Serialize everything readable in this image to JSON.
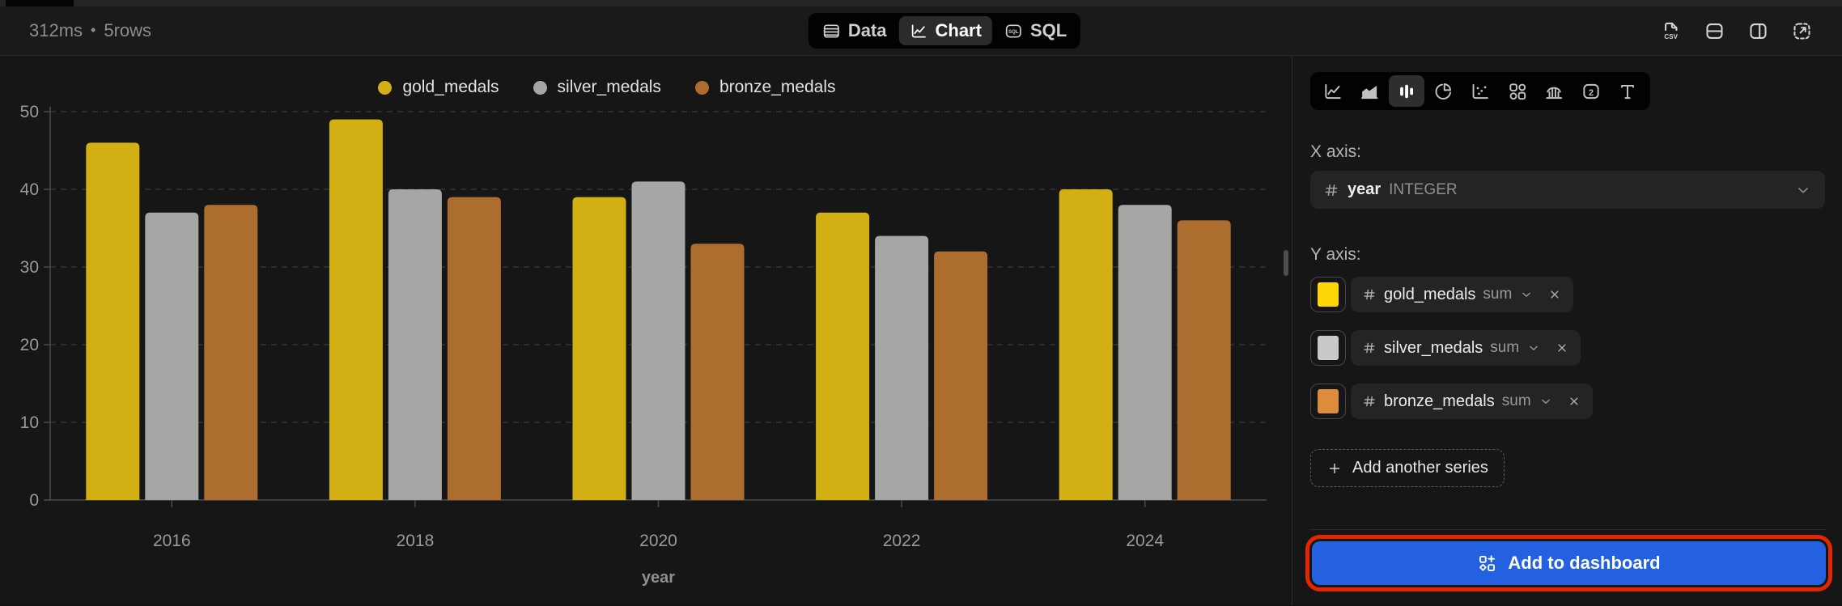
{
  "colors": {
    "gold": "#d2b014",
    "silver": "#a6a6a4",
    "bronze": "#ad6d2f",
    "swatch_gold": "#ffd60a",
    "swatch_silver": "#c9c9c9",
    "swatch_bronze": "#dd8c3c",
    "primary_button": "#2361e0",
    "annotation_highlight": "#e32500"
  },
  "status_bar": {
    "duration": "312ms",
    "bullet": "•",
    "row_count": "5rows"
  },
  "view_tabs": {
    "items": [
      {
        "label": "Data",
        "icon": "table-icon",
        "active": false
      },
      {
        "label": "Chart",
        "icon": "line-chart-icon",
        "active": true
      },
      {
        "label": "SQL",
        "icon": "sql-icon",
        "active": false
      }
    ]
  },
  "toolbar": {
    "icons": [
      {
        "name": "csv-export-icon"
      },
      {
        "name": "split-horizontal-icon"
      },
      {
        "name": "split-vertical-icon"
      },
      {
        "name": "expand-icon"
      }
    ]
  },
  "chart_data": {
    "type": "bar",
    "categories": [
      "2016",
      "2018",
      "2020",
      "2022",
      "2024"
    ],
    "series": [
      {
        "name": "gold_medals",
        "color": "#d2b014",
        "values": [
          46,
          49,
          39,
          37,
          40
        ]
      },
      {
        "name": "silver_medals",
        "color": "#a6a6a4",
        "values": [
          37,
          40,
          41,
          34,
          38
        ]
      },
      {
        "name": "bronze_medals",
        "color": "#ad6d2f",
        "values": [
          38,
          39,
          33,
          32,
          36
        ]
      }
    ],
    "title": "",
    "xlabel": "year",
    "ylabel": "",
    "ylim": [
      0,
      50
    ],
    "yticks": [
      0,
      10,
      20,
      30,
      40,
      50
    ],
    "grid": "horizontal-dashed",
    "legend_position": "top"
  },
  "panel": {
    "chart_types": [
      {
        "icon": "line-chart-icon",
        "active": false
      },
      {
        "icon": "area-chart-icon",
        "active": false
      },
      {
        "icon": "bar-chart-icon",
        "active": true
      },
      {
        "icon": "pie-chart-icon",
        "active": false
      },
      {
        "icon": "scatter-plot-icon",
        "active": false
      },
      {
        "icon": "cards-icon",
        "active": false
      },
      {
        "icon": "histogram-icon",
        "active": false
      },
      {
        "icon": "single-value-icon",
        "active": false
      },
      {
        "icon": "text-icon",
        "active": false
      }
    ],
    "x_axis": {
      "label": "X axis:",
      "field": "year",
      "field_type": "INTEGER"
    },
    "y_axis": {
      "label": "Y axis:",
      "series": [
        {
          "field": "gold_medals",
          "aggregation": "sum",
          "swatch_color": "#ffd60a"
        },
        {
          "field": "silver_medals",
          "aggregation": "sum",
          "swatch_color": "#c9c9c9"
        },
        {
          "field": "bronze_medals",
          "aggregation": "sum",
          "swatch_color": "#dd8c3c"
        }
      ],
      "add_series_label": "Add another series"
    },
    "add_to_dashboard": {
      "label": "Add to dashboard",
      "icon": "dashboard-add-icon"
    }
  }
}
